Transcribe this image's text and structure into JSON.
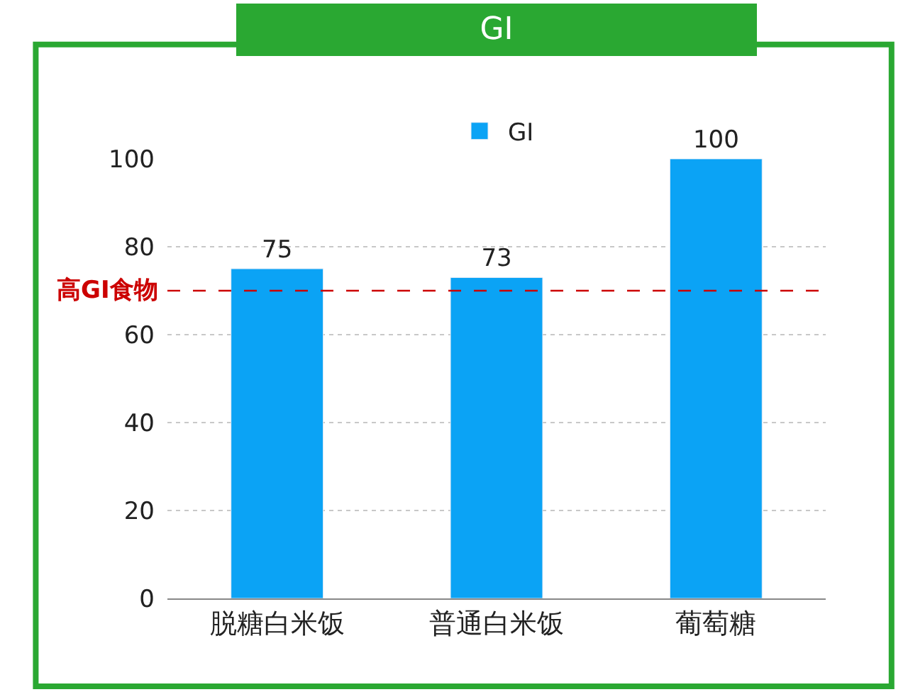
{
  "chart_data": {
    "type": "bar",
    "title": "GI",
    "categories": [
      "脱糖白米饭",
      "普通白米饭",
      "葡萄糖"
    ],
    "series": [
      {
        "name": "GI",
        "color": "#0ba3f5",
        "values": [
          75,
          73,
          100
        ]
      }
    ],
    "data_labels": true,
    "ylim": [
      0,
      100
    ],
    "yticks": [
      0,
      20,
      40,
      60,
      80,
      100
    ],
    "grid": "y",
    "legend": "top",
    "ref_lines": [
      {
        "axis": "y",
        "value": 70,
        "label": "高GI食物",
        "color": "#cc0000",
        "line_style": "dashed"
      }
    ]
  }
}
